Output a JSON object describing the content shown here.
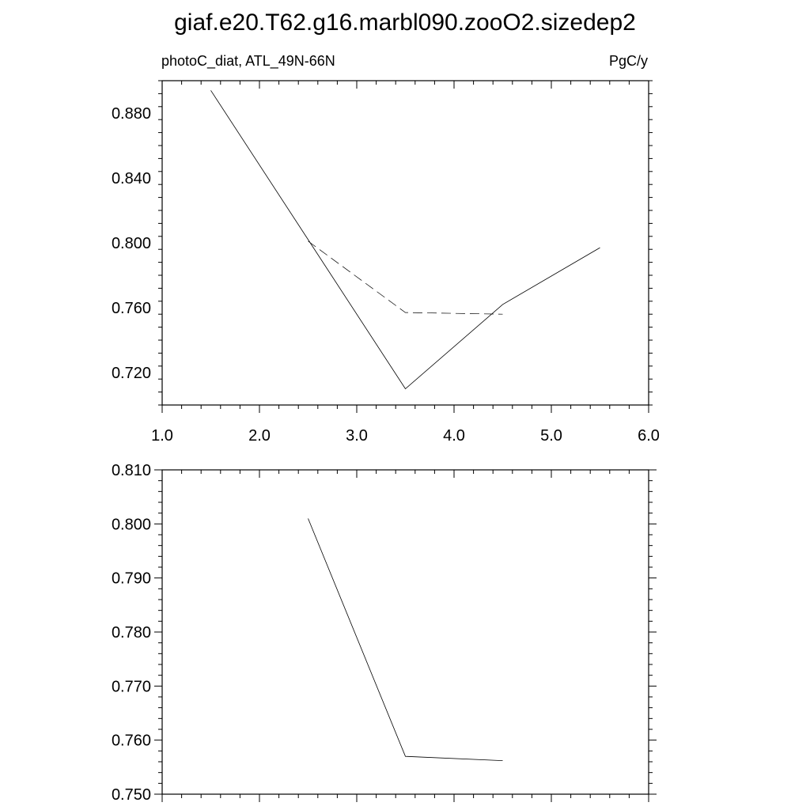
{
  "title": "giaf.e20.T62.g16.marbl090.zooO2.sizedep2",
  "chart_data": [
    {
      "type": "line",
      "left_label": "photoC_diat, ATL_49N-66N",
      "right_label": "PgC/y",
      "xlim": [
        1.0,
        6.0
      ],
      "ylim": [
        0.7,
        0.9
      ],
      "x_ticks": [
        1.0,
        2.0,
        3.0,
        4.0,
        5.0,
        6.0
      ],
      "x_tick_labels": [
        "1.0",
        "2.0",
        "3.0",
        "4.0",
        "5.0",
        "6.0"
      ],
      "y_ticks": [
        0.72,
        0.76,
        0.8,
        0.84,
        0.88
      ],
      "y_tick_labels": [
        "0.720",
        "0.760",
        "0.800",
        "0.840",
        "0.880"
      ],
      "series": [
        {
          "style": "solid",
          "x": [
            1.5,
            2.5,
            3.5,
            4.5,
            5.5
          ],
          "y": [
            0.894,
            0.802,
            0.71,
            0.762,
            0.797
          ]
        },
        {
          "style": "dashed",
          "x": [
            2.5,
            3.5,
            4.5
          ],
          "y": [
            0.801,
            0.757,
            0.756
          ]
        }
      ]
    },
    {
      "type": "line",
      "xlim": [
        1.0,
        6.0
      ],
      "ylim": [
        0.75,
        0.81
      ],
      "y_ticks": [
        0.75,
        0.76,
        0.77,
        0.78,
        0.79,
        0.8,
        0.81
      ],
      "y_tick_labels": [
        "0.750",
        "0.760",
        "0.770",
        "0.780",
        "0.790",
        "0.800",
        "0.810"
      ],
      "series": [
        {
          "style": "solid",
          "x": [
            2.5,
            3.5,
            4.5
          ],
          "y": [
            0.801,
            0.757,
            0.7562
          ]
        }
      ]
    }
  ]
}
